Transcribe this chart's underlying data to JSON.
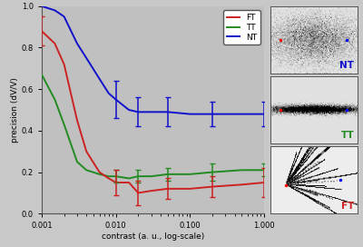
{
  "bg_color": "#c8c8c8",
  "plot_bg_color": "#c0c0c0",
  "panel_bg_color": "#b8b8b8",
  "x_values": [
    0.001,
    0.0015,
    0.002,
    0.003,
    0.004,
    0.006,
    0.008,
    0.01,
    0.015,
    0.02,
    0.03,
    0.05,
    0.1,
    0.2,
    0.5,
    1.0
  ],
  "NT_y": [
    1.0,
    0.98,
    0.95,
    0.82,
    0.75,
    0.65,
    0.58,
    0.55,
    0.5,
    0.49,
    0.49,
    0.49,
    0.48,
    0.48,
    0.48,
    0.48
  ],
  "NT_err": [
    0.0,
    0.0,
    0.0,
    0.0,
    0.0,
    0.0,
    0.0,
    0.09,
    0.0,
    0.07,
    0.0,
    0.07,
    0.0,
    0.06,
    0.0,
    0.06
  ],
  "TT_y": [
    0.67,
    0.55,
    0.43,
    0.25,
    0.21,
    0.19,
    0.18,
    0.18,
    0.17,
    0.18,
    0.18,
    0.19,
    0.19,
    0.2,
    0.21,
    0.21
  ],
  "TT_err": [
    0.0,
    0.0,
    0.0,
    0.0,
    0.0,
    0.0,
    0.0,
    0.03,
    0.0,
    0.03,
    0.0,
    0.03,
    0.0,
    0.04,
    0.0,
    0.03
  ],
  "FT_y": [
    0.88,
    0.82,
    0.72,
    0.45,
    0.3,
    0.2,
    0.17,
    0.15,
    0.15,
    0.1,
    0.11,
    0.12,
    0.12,
    0.13,
    0.14,
    0.15
  ],
  "FT_err": [
    0.07,
    0.0,
    0.0,
    0.0,
    0.0,
    0.0,
    0.0,
    0.06,
    0.0,
    0.06,
    0.0,
    0.05,
    0.0,
    0.05,
    0.0,
    0.07
  ],
  "NT_color": "#1111cc",
  "TT_color": "#228B22",
  "FT_color": "#cc2222",
  "ylabel": "precision (dV/V)",
  "xlabel": "contrast (a. u., log-scale)",
  "ylim": [
    0.0,
    1.0
  ],
  "legend_labels": [
    "FT",
    "TT",
    "NT"
  ],
  "legend_colors": [
    "#cc2222",
    "#228B22",
    "#1111cc"
  ]
}
